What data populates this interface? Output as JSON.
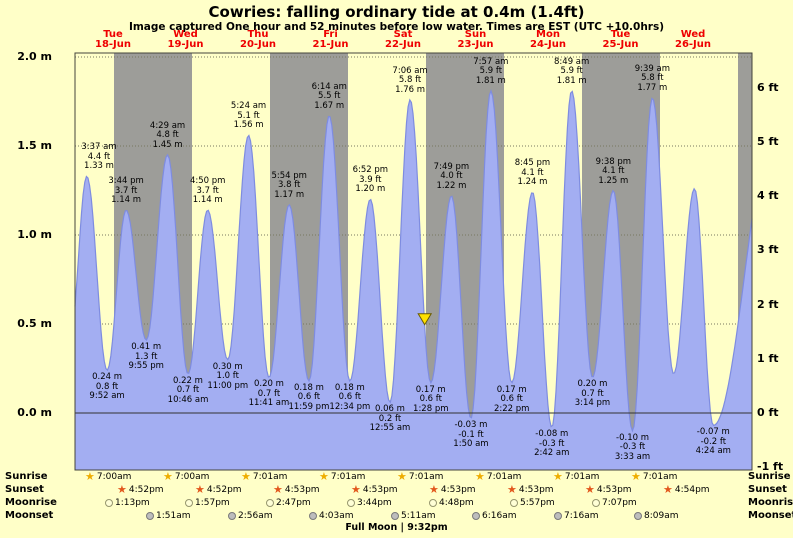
{
  "title": "Cowries: falling ordinary tide at 0.4m (1.4ft)",
  "subtitle": "Image captured One hour and 52 minutes before low water. Times are EST (UTC +10.0hrs)",
  "colors": {
    "background": "#ffffc8",
    "band_gray": "#9d9d99",
    "tide_fill": "#a3aef2",
    "tide_stroke": "#7e8ce0",
    "day_label_red": "#ee0000",
    "marker_yellow": "#ffe000"
  },
  "days": [
    {
      "name": "Tue",
      "date": "18-Jun"
    },
    {
      "name": "Wed",
      "date": "19-Jun"
    },
    {
      "name": "Thu",
      "date": "20-Jun"
    },
    {
      "name": "Fri",
      "date": "21-Jun"
    },
    {
      "name": "Sat",
      "date": "22-Jun"
    },
    {
      "name": "Sun",
      "date": "23-Jun"
    },
    {
      "name": "Mon",
      "date": "24-Jun"
    },
    {
      "name": "Tue",
      "date": "25-Jun"
    },
    {
      "name": "Wed",
      "date": "26-Jun"
    }
  ],
  "y_axis": {
    "left_labels": [
      "2.0 m",
      "1.5 m",
      "1.0 m",
      "0.5 m",
      "0.0 m"
    ],
    "right_labels": [
      "6 ft",
      "5 ft",
      "4 ft",
      "3 ft",
      "2 ft",
      "1 ft",
      "0 ft",
      "-1 ft"
    ]
  },
  "chart_data": {
    "type": "area",
    "title": "Tide height curve for Cowries, Jun 18-26",
    "x_unit": "hours since Tue 18-Jun 00:00 (times are EST, UTC +10.0hrs)",
    "y_unit": "metres",
    "ylim_m": [
      -0.32,
      2.0
    ],
    "extremes": [
      {
        "day": "Tue 18-Jun",
        "type": "high",
        "time": "3:37 am",
        "label_ft": "4.4 ft",
        "label_m": "1.33 m",
        "height_m": 1.33,
        "height_ft": 4.4,
        "t_hours": 3.62
      },
      {
        "day": "Tue 18-Jun",
        "type": "low",
        "time": "9:52 am",
        "label_ft": "0.8 ft",
        "label_m": "0.24 m",
        "height_m": 0.24,
        "height_ft": 0.8,
        "t_hours": 9.87
      },
      {
        "day": "Tue 18-Jun",
        "type": "high",
        "time": "3:44 pm",
        "label_ft": "3.7 ft",
        "label_m": "1.14 m",
        "height_m": 1.14,
        "height_ft": 3.7,
        "t_hours": 15.73
      },
      {
        "day": "Tue 18-Jun",
        "type": "low",
        "time": "9:55 pm",
        "label_ft": "1.3 ft",
        "label_m": "0.41 m",
        "height_m": 0.41,
        "height_ft": 1.3,
        "t_hours": 21.92
      },
      {
        "day": "Wed 19-Jun",
        "type": "high",
        "time": "4:29 am",
        "label_ft": "4.8 ft",
        "label_m": "1.45 m",
        "height_m": 1.45,
        "height_ft": 4.8,
        "t_hours": 28.48
      },
      {
        "day": "Wed 19-Jun",
        "type": "low",
        "time": "10:46 am",
        "label_ft": "0.7 ft",
        "label_m": "0.22 m",
        "height_m": 0.22,
        "height_ft": 0.7,
        "t_hours": 34.77
      },
      {
        "day": "Wed 19-Jun",
        "type": "high",
        "time": "4:50 pm",
        "label_ft": "3.7 ft",
        "label_m": "1.14 m",
        "height_m": 1.14,
        "height_ft": 3.7,
        "t_hours": 40.83
      },
      {
        "day": "Wed 19-Jun",
        "type": "low",
        "time": "11:00 pm",
        "label_ft": "1.0 ft",
        "label_m": "0.30 m",
        "height_m": 0.3,
        "height_ft": 1.0,
        "t_hours": 47.0
      },
      {
        "day": "Thu 20-Jun",
        "type": "high",
        "time": "5:24 am",
        "label_ft": "5.1 ft",
        "label_m": "1.56 m",
        "height_m": 1.56,
        "height_ft": 5.1,
        "t_hours": 53.4
      },
      {
        "day": "Thu 20-Jun",
        "type": "low",
        "time": "11:41 am",
        "label_ft": "0.7 ft",
        "label_m": "0.20 m",
        "height_m": 0.2,
        "height_ft": 0.7,
        "t_hours": 59.68
      },
      {
        "day": "Thu 20-Jun",
        "type": "high",
        "time": "5:54 pm",
        "label_ft": "3.8 ft",
        "label_m": "1.17 m",
        "height_m": 1.17,
        "height_ft": 3.8,
        "t_hours": 65.9
      },
      {
        "day": "Thu 20-Jun",
        "type": "low",
        "time": "11:59 pm",
        "label_ft": "0.6 ft",
        "label_m": "0.18 m",
        "height_m": 0.18,
        "height_ft": 0.6,
        "t_hours": 71.98
      },
      {
        "day": "Fri 21-Jun",
        "type": "high",
        "time": "6:14 am",
        "label_ft": "5.5 ft",
        "label_m": "1.67 m",
        "height_m": 1.67,
        "height_ft": 5.5,
        "t_hours": 78.23
      },
      {
        "day": "Fri 21-Jun",
        "type": "low",
        "time": "12:34 pm",
        "label_ft": "0.6 ft",
        "label_m": "0.18 m",
        "height_m": 0.18,
        "height_ft": 0.6,
        "t_hours": 84.57
      },
      {
        "day": "Fri 21-Jun",
        "type": "high",
        "time": "6:52 pm",
        "label_ft": "3.9 ft",
        "label_m": "1.20 m",
        "height_m": 1.2,
        "height_ft": 3.9,
        "t_hours": 90.87
      },
      {
        "day": "Sat 22-Jun",
        "type": "low",
        "time": "12:55 am",
        "label_ft": "0.2 ft",
        "label_m": "0.06 m",
        "height_m": 0.06,
        "height_ft": 0.2,
        "t_hours": 96.92
      },
      {
        "day": "Sat 22-Jun",
        "type": "high",
        "time": "7:06 am",
        "label_ft": "5.8 ft",
        "label_m": "1.76 m",
        "height_m": 1.76,
        "height_ft": 5.8,
        "t_hours": 103.1
      },
      {
        "day": "Sat 22-Jun",
        "type": "low",
        "time": "1:28 pm",
        "label_ft": "0.6 ft",
        "label_m": "0.17 m",
        "height_m": 0.17,
        "height_ft": 0.6,
        "t_hours": 109.47
      },
      {
        "day": "Sat 22-Jun",
        "type": "high",
        "time": "7:49 pm",
        "label_ft": "4.0 ft",
        "label_m": "1.22 m",
        "height_m": 1.22,
        "height_ft": 4.0,
        "t_hours": 115.82
      },
      {
        "day": "Sun 23-Jun",
        "type": "low",
        "time": "1:50 am",
        "label_ft": "-0.1 ft",
        "label_m": "-0.03 m",
        "height_m": -0.03,
        "height_ft": -0.1,
        "t_hours": 121.83
      },
      {
        "day": "Sun 23-Jun",
        "type": "high",
        "time": "7:57 am",
        "label_ft": "5.9 ft",
        "label_m": "1.81 m",
        "height_m": 1.81,
        "height_ft": 5.9,
        "t_hours": 127.95
      },
      {
        "day": "Sun 23-Jun",
        "type": "low",
        "time": "2:22 pm",
        "label_ft": "0.6 ft",
        "label_m": "0.17 m",
        "height_m": 0.17,
        "height_ft": 0.6,
        "t_hours": 134.37
      },
      {
        "day": "Sun 23-Jun",
        "type": "high",
        "time": "8:45 pm",
        "label_ft": "4.1 ft",
        "label_m": "1.24 m",
        "height_m": 1.24,
        "height_ft": 4.1,
        "t_hours": 140.75
      },
      {
        "day": "Mon 24-Jun",
        "type": "low",
        "time": "2:42 am",
        "label_ft": "-0.3 ft",
        "label_m": "-0.08 m",
        "height_m": -0.08,
        "height_ft": -0.3,
        "t_hours": 146.7
      },
      {
        "day": "Mon 24-Jun",
        "type": "high",
        "time": "8:49 am",
        "label_ft": "5.9 ft",
        "label_m": "1.81 m",
        "height_m": 1.81,
        "height_ft": 5.9,
        "t_hours": 152.82
      },
      {
        "day": "Mon 24-Jun",
        "type": "low",
        "time": "3:14 pm",
        "label_ft": "0.7 ft",
        "label_m": "0.20 m",
        "height_m": 0.2,
        "height_ft": 0.7,
        "t_hours": 159.23
      },
      {
        "day": "Mon 24-Jun",
        "type": "high",
        "time": "9:38 pm",
        "label_ft": "4.1 ft",
        "label_m": "1.25 m",
        "height_m": 1.25,
        "height_ft": 4.1,
        "t_hours": 165.63
      },
      {
        "day": "Tue 25-Jun",
        "type": "low",
        "time": "3:33 am",
        "label_ft": "-0.3 ft",
        "label_m": "-0.10 m",
        "height_m": -0.1,
        "height_ft": -0.3,
        "t_hours": 171.55
      },
      {
        "day": "Tue 25-Jun",
        "type": "high",
        "time": "9:39 am",
        "label_ft": "5.8 ft",
        "label_m": "1.77 m",
        "height_m": 1.77,
        "height_ft": 5.8,
        "t_hours": 177.65
      },
      {
        "day": "Wed 26-Jun",
        "type": "low",
        "time": "4:24 am",
        "label_ft": "-0.2 ft",
        "label_m": "-0.07 m",
        "height_m": -0.07,
        "height_ft": -0.2,
        "t_hours": 196.4
      }
    ],
    "unlabeled_curve_points": [
      {
        "t_hours": 184.2,
        "height_m": 0.22
      },
      {
        "t_hours": 190.6,
        "height_m": 1.26
      }
    ],
    "marker": {
      "t_hours": 107.6,
      "note": "capture time, One hour and 52 minutes before low water"
    }
  },
  "footer": {
    "rows": [
      {
        "label": "Sunrise",
        "icon": "sunrise-star",
        "entries": [
          {
            "t_hours": 7.0,
            "time": "7:00am"
          },
          {
            "t_hours": 31.0,
            "time": "7:00am"
          },
          {
            "t_hours": 55.0,
            "time": "7:01am"
          },
          {
            "t_hours": 79.0,
            "time": "7:01am"
          },
          {
            "t_hours": 103.0,
            "time": "7:01am"
          },
          {
            "t_hours": 127.0,
            "time": "7:01am"
          },
          {
            "t_hours": 151.0,
            "time": "7:01am"
          },
          {
            "t_hours": 175.0,
            "time": "7:01am"
          }
        ]
      },
      {
        "label": "Sunset",
        "icon": "sunset-star",
        "entries": [
          {
            "t_hours": 16.87,
            "time": "4:52pm"
          },
          {
            "t_hours": 40.87,
            "time": "4:52pm"
          },
          {
            "t_hours": 64.88,
            "time": "4:53pm"
          },
          {
            "t_hours": 88.88,
            "time": "4:53pm"
          },
          {
            "t_hours": 112.88,
            "time": "4:53pm"
          },
          {
            "t_hours": 136.88,
            "time": "4:53pm"
          },
          {
            "t_hours": 160.88,
            "time": "4:53pm"
          },
          {
            "t_hours": 184.9,
            "time": "4:54pm"
          }
        ]
      },
      {
        "label": "Moonrise",
        "icon": "moonrise-circle",
        "entries": [
          {
            "t_hours": 13.22,
            "time": "1:13pm"
          },
          {
            "t_hours": 37.95,
            "time": "1:57pm"
          },
          {
            "t_hours": 62.78,
            "time": "2:47pm"
          },
          {
            "t_hours": 87.73,
            "time": "3:44pm"
          },
          {
            "t_hours": 112.8,
            "time": "4:48pm"
          },
          {
            "t_hours": 137.95,
            "time": "5:57pm"
          },
          {
            "t_hours": 163.12,
            "time": "7:07pm"
          }
        ]
      },
      {
        "label": "Moonset",
        "icon": "moonset-circle",
        "entries": [
          {
            "t_hours": 25.85,
            "time": "1:51am"
          },
          {
            "t_hours": 50.93,
            "time": "2:56am"
          },
          {
            "t_hours": 76.05,
            "time": "4:03am"
          },
          {
            "t_hours": 101.18,
            "time": "5:11am"
          },
          {
            "t_hours": 126.27,
            "time": "6:16am"
          },
          {
            "t_hours": 151.27,
            "time": "7:16am"
          },
          {
            "t_hours": 176.15,
            "time": "8:09am"
          }
        ]
      }
    ],
    "full_moon": "Full Moon | 9:32pm"
  }
}
